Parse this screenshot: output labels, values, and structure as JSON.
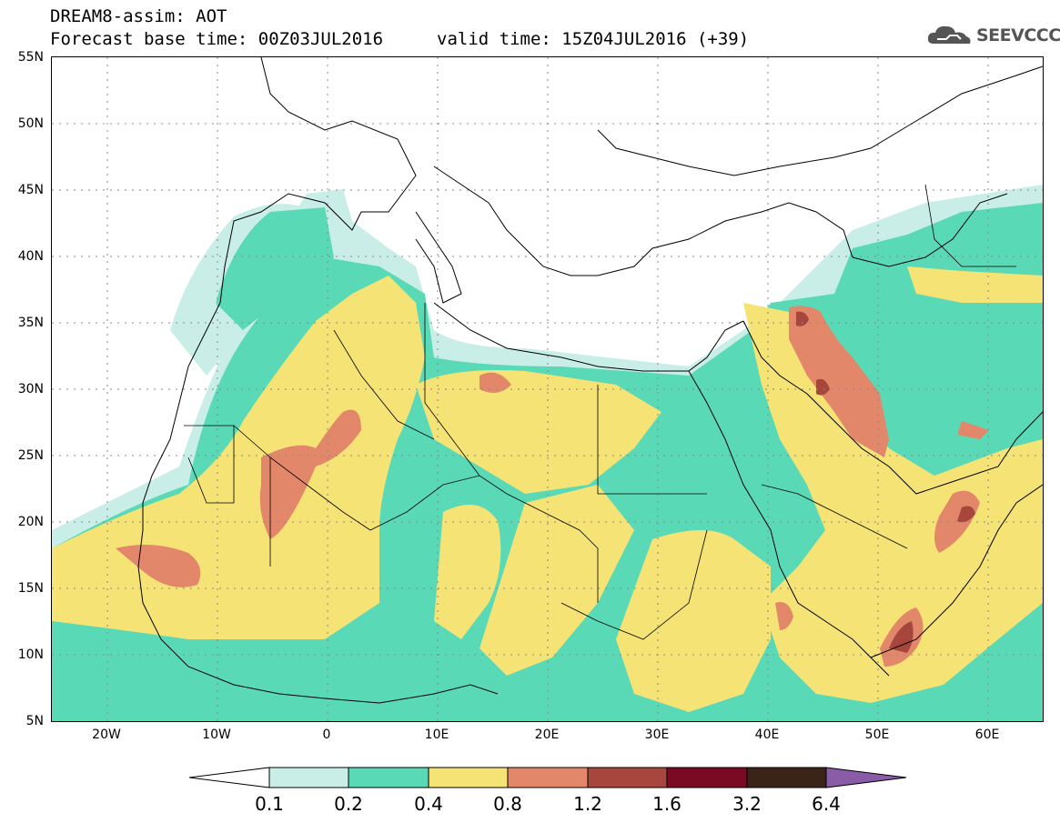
{
  "header": {
    "line1": "DREAM8-assim: AOT",
    "line2": "Forecast base time: 00Z03JUL2016",
    "line3": "valid time: 15Z04JUL2016 (+39)",
    "logo_text": "SEEVCCC"
  },
  "axes": {
    "lat_labels": [
      "55N",
      "50N",
      "45N",
      "40N",
      "35N",
      "30N",
      "25N",
      "20N",
      "15N",
      "10N",
      "5N"
    ],
    "lon_labels": [
      "20W",
      "10W",
      "0",
      "10E",
      "20E",
      "30E",
      "40E",
      "50E",
      "60E"
    ]
  },
  "colorbar": {
    "labels": [
      "0.1",
      "0.2",
      "0.4",
      "0.8",
      "1.2",
      "1.6",
      "3.2",
      "6.4"
    ],
    "colors": [
      "#ffffff",
      "#c9eee8",
      "#5ad9b6",
      "#f5e375",
      "#e3876a",
      "#a6463c",
      "#7a0a24",
      "#3a2418",
      "#8a5ca8"
    ]
  },
  "legend_colors": {
    "c01": "#c9eee8",
    "c02": "#5ad9b6",
    "c04": "#f5e375",
    "c08": "#e3876a",
    "c12": "#a6463c"
  }
}
